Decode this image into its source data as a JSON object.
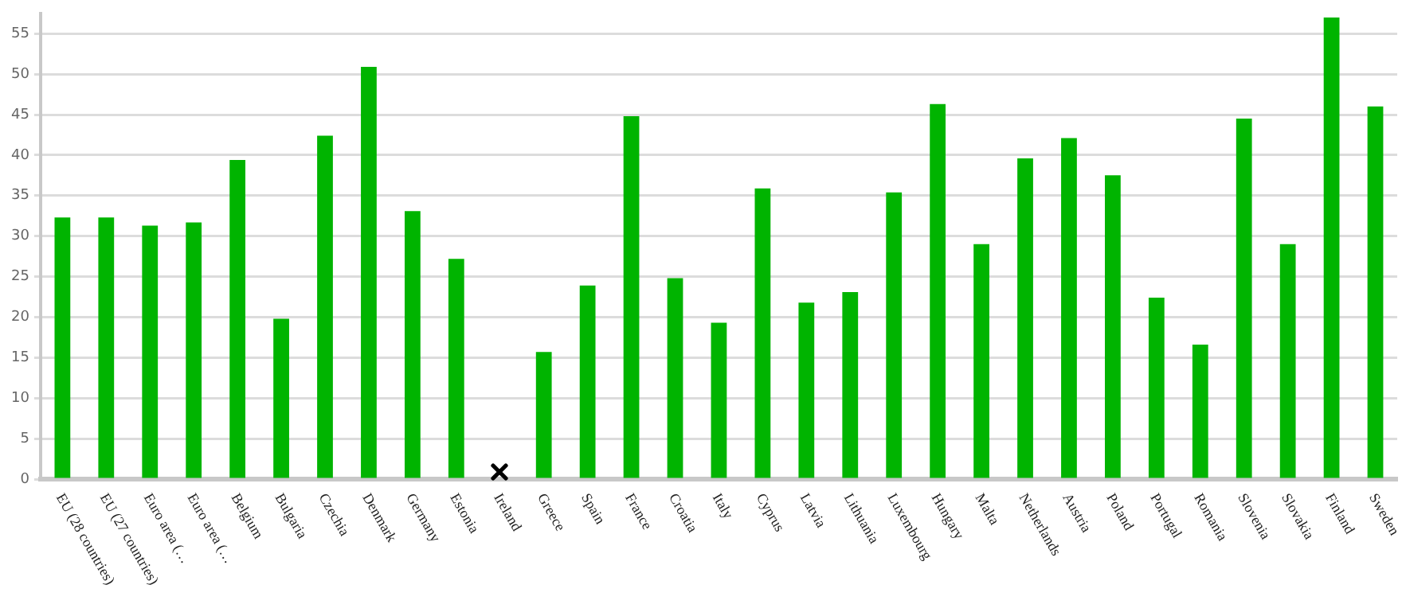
{
  "chart_data": {
    "type": "bar",
    "categories": [
      "EU (28 countries)",
      "EU (27 countries)",
      "Euro area (…",
      "Euro area (…",
      "Belgium",
      "Bulgaria",
      "Czechia",
      "Denmark",
      "Germany",
      "Estonia",
      "Ireland",
      "Greece",
      "Spain",
      "France",
      "Croatia",
      "Italy",
      "Cyprus",
      "Latvia",
      "Lithuania",
      "Luxembourg",
      "Hungary",
      "Malta",
      "Netherlands",
      "Austria",
      "Poland",
      "Portugal",
      "Romania",
      "Slovenia",
      "Slovakia",
      "Finland",
      "Sweden"
    ],
    "values": [
      32.3,
      32.3,
      31.3,
      31.7,
      39.4,
      19.8,
      42.4,
      50.9,
      33.1,
      27.2,
      null,
      15.7,
      23.9,
      44.8,
      24.8,
      19.3,
      35.9,
      21.8,
      23.1,
      35.4,
      46.3,
      29.0,
      39.6,
      42.1,
      37.5,
      22.4,
      16.6,
      44.5,
      29.0,
      57.0,
      46.0
    ],
    "color": "#00b400",
    "ylim": [
      0,
      57.5
    ],
    "yticks": [
      0,
      5,
      10,
      15,
      20,
      25,
      30,
      35,
      40,
      45,
      50,
      55
    ],
    "grid": "y",
    "legend": false
  }
}
